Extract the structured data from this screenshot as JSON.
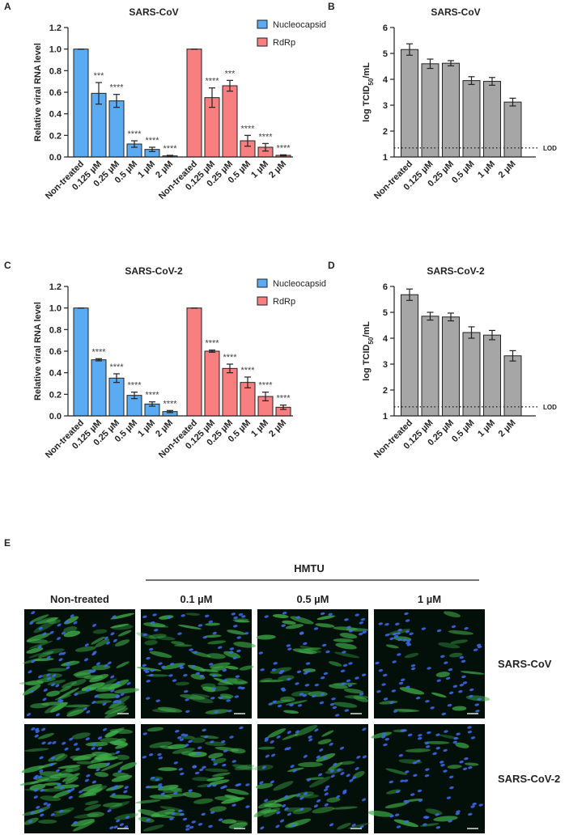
{
  "chart_data": [
    {
      "type": "bar",
      "panel": "A",
      "title": "SARS-CoV",
      "ylabel": "Relative viral RNA level",
      "categories": [
        "Non-treated",
        "0.125 µM",
        "0.25 µM",
        "0.5 µM",
        "1 µM",
        "2 µM"
      ],
      "series": [
        {
          "name": "Nucleocapsid",
          "color": "#5aabf2",
          "values": [
            1,
            0.59,
            0.52,
            0.12,
            0.07,
            0.01
          ],
          "errors": [
            0,
            0.1,
            0.06,
            0.03,
            0.02,
            0.005
          ],
          "annotations": [
            null,
            "***",
            "****",
            "****",
            "****",
            "****"
          ]
        },
        {
          "name": "RdRp",
          "color": "#f77f7f",
          "values": [
            1,
            0.55,
            0.66,
            0.15,
            0.09,
            0.015
          ],
          "errors": [
            0,
            0.09,
            0.05,
            0.05,
            0.035,
            0.005
          ],
          "annotations": [
            null,
            "****",
            "***",
            "****",
            "****",
            "****"
          ]
        }
      ],
      "ylim": [
        0,
        1.2
      ],
      "yticks": [
        {
          "value": 0,
          "label": "0.0"
        },
        {
          "value": 0.2,
          "label": "0.2"
        },
        {
          "value": 0.4,
          "label": "0.4"
        },
        {
          "value": 0.6,
          "label": "0.6"
        },
        {
          "value": 0.8,
          "label": "0.8"
        },
        {
          "value": 1,
          "label": "1.0"
        },
        {
          "value": 1.2,
          "label": "1.2"
        }
      ]
    },
    {
      "type": "bar",
      "panel": "B",
      "title": "SARS-CoV",
      "ylabel": [
        "log TCID",
        "50",
        "/mL"
      ],
      "categories": [
        "Non-treated",
        "0.125 µM",
        "0.25 µM",
        "0.5 µM",
        "1 µM",
        "2 µM"
      ],
      "series": [
        {
          "color": "#a6a6a6",
          "values": [
            5.15,
            4.6,
            4.62,
            3.95,
            3.92,
            3.12
          ],
          "errors": [
            0.22,
            0.18,
            0.1,
            0.15,
            0.15,
            0.15
          ]
        }
      ],
      "ylim": [
        1,
        6
      ],
      "yticks": [
        1,
        2,
        3,
        4,
        5,
        6
      ],
      "lod": {
        "value": 1.35,
        "label": "LOD"
      }
    },
    {
      "type": "bar",
      "panel": "C",
      "title": "SARS-CoV-2",
      "ylabel": "Relative viral RNA level",
      "categories": [
        "Non-treated",
        "0.125 µM",
        "0.25 µM",
        "0.5 µM",
        "1 µM",
        "2 µM"
      ],
      "series": [
        {
          "name": "Nucleocapsid",
          "color": "#5aabf2",
          "values": [
            1,
            0.52,
            0.35,
            0.19,
            0.11,
            0.04
          ],
          "errors": [
            0,
            0.01,
            0.04,
            0.03,
            0.02,
            0.01
          ],
          "annotations": [
            null,
            "****",
            "****",
            "****",
            "****",
            "****"
          ]
        },
        {
          "name": "RdRp",
          "color": "#f77f7f",
          "values": [
            1,
            0.6,
            0.44,
            0.31,
            0.18,
            0.08
          ],
          "errors": [
            0,
            0.01,
            0.04,
            0.05,
            0.04,
            0.02
          ],
          "annotations": [
            null,
            "****",
            "****",
            "****",
            "****",
            "****"
          ]
        }
      ],
      "ylim": [
        0,
        1.2
      ],
      "yticks": [
        {
          "value": 0,
          "label": "0.0"
        },
        {
          "value": 0.2,
          "label": "0.2"
        },
        {
          "value": 0.4,
          "label": "0.4"
        },
        {
          "value": 0.6,
          "label": "0.6"
        },
        {
          "value": 0.8,
          "label": "0.8"
        },
        {
          "value": 1,
          "label": "1.0"
        },
        {
          "value": 1.2,
          "label": "1.2"
        }
      ]
    },
    {
      "type": "bar",
      "panel": "D",
      "title": "SARS-CoV-2",
      "ylabel": [
        "log TCID",
        "50",
        "/mL"
      ],
      "categories": [
        "Non-treated",
        "0.125 µM",
        "0.25 µM",
        "0.5 µM",
        "1 µM",
        "2 µM"
      ],
      "series": [
        {
          "color": "#a6a6a6",
          "values": [
            5.68,
            4.85,
            4.82,
            4.22,
            4.12,
            3.32
          ],
          "errors": [
            0.22,
            0.15,
            0.15,
            0.22,
            0.18,
            0.2
          ]
        }
      ],
      "ylim": [
        1,
        6
      ],
      "yticks": [
        1,
        2,
        3,
        4,
        5,
        6
      ],
      "lod": {
        "value": 1.35,
        "label": "LOD"
      }
    }
  ],
  "figure_e": {
    "panel": "E",
    "group_label": "HMTU",
    "columns": [
      "Non-treated",
      "0.1 µM",
      "0.5 µM",
      "1 µM"
    ],
    "rows": [
      "SARS-CoV",
      "SARS-CoV-2"
    ]
  }
}
